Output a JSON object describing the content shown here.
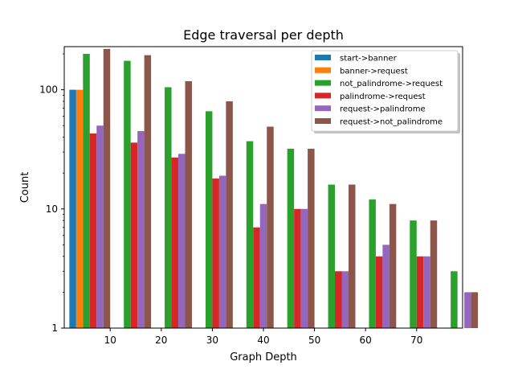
{
  "chart_data": {
    "type": "bar",
    "title": "Edge traversal per depth",
    "xlabel": "Graph Depth",
    "ylabel": "Count",
    "yscale": "log",
    "ylim": [
      1,
      230
    ],
    "xlim": [
      1,
      79
    ],
    "xticks": [
      10,
      20,
      30,
      40,
      50,
      60,
      70
    ],
    "yticks": [
      {
        "value": 1,
        "label": "1"
      },
      {
        "value": 10,
        "label": "10"
      },
      {
        "value": 100,
        "label": "100"
      }
    ],
    "grid": false,
    "legend_position": "top-right",
    "group_centers": [
      6,
      14,
      22,
      30,
      38,
      46,
      54,
      62,
      70,
      78
    ],
    "series": [
      {
        "name": "start->banner",
        "color": "#1f77b4",
        "values": [
          100,
          null,
          null,
          null,
          null,
          null,
          null,
          null,
          null,
          null
        ]
      },
      {
        "name": "banner->request",
        "color": "#ff7f0e",
        "values": [
          100,
          null,
          null,
          null,
          null,
          null,
          null,
          null,
          null,
          null
        ]
      },
      {
        "name": "not_palindrome->request",
        "color": "#2ca02c",
        "values": [
          200,
          175,
          105,
          66,
          37,
          32,
          16,
          12,
          8,
          3
        ]
      },
      {
        "name": "palindrome->request",
        "color": "#d62728",
        "values": [
          43,
          36,
          27,
          18,
          7,
          10,
          3,
          4,
          4,
          1
        ]
      },
      {
        "name": "request->palindrome",
        "color": "#9467bd",
        "values": [
          50,
          45,
          29,
          19,
          11,
          10,
          3,
          5,
          4,
          2
        ]
      },
      {
        "name": "request->not_palindrome",
        "color": "#8c564b",
        "values": [
          220,
          195,
          118,
          80,
          49,
          32,
          16,
          11,
          8,
          2
        ]
      }
    ]
  }
}
